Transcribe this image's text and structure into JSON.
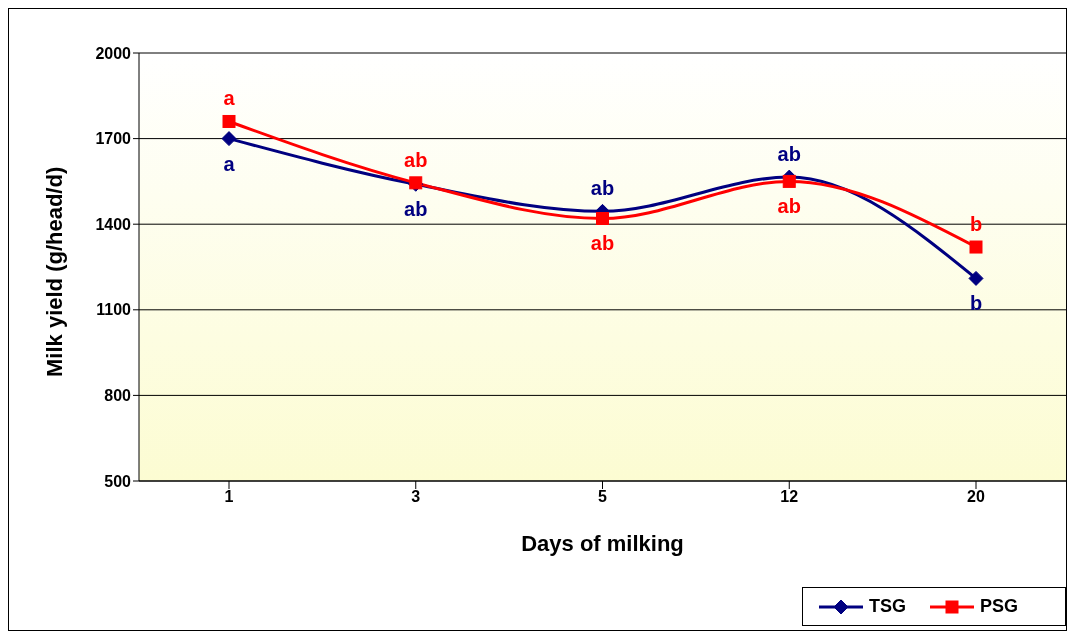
{
  "chart_data": {
    "type": "line",
    "xlabel": "Days of milking",
    "ylabel": "Milk yield (g/head/d)",
    "categories": [
      "1",
      "3",
      "5",
      "12",
      "20"
    ],
    "series": [
      {
        "name": "TSG",
        "color": "#000080",
        "marker": "diamond",
        "values": [
          1700,
          1540,
          1445,
          1565,
          1210
        ],
        "value_labels": [
          "a",
          "ab",
          "ab",
          "ab",
          "b"
        ]
      },
      {
        "name": "PSG",
        "color": "#ff0000",
        "marker": "square",
        "values": [
          1760,
          1545,
          1420,
          1550,
          1320
        ],
        "value_labels": [
          "a",
          "ab",
          "ab",
          "ab",
          "b"
        ]
      }
    ],
    "ylim": [
      500,
      2000
    ],
    "yticks": [
      500,
      800,
      1100,
      1400,
      1700,
      2000
    ],
    "grid": "y",
    "legend": "bottom right"
  }
}
